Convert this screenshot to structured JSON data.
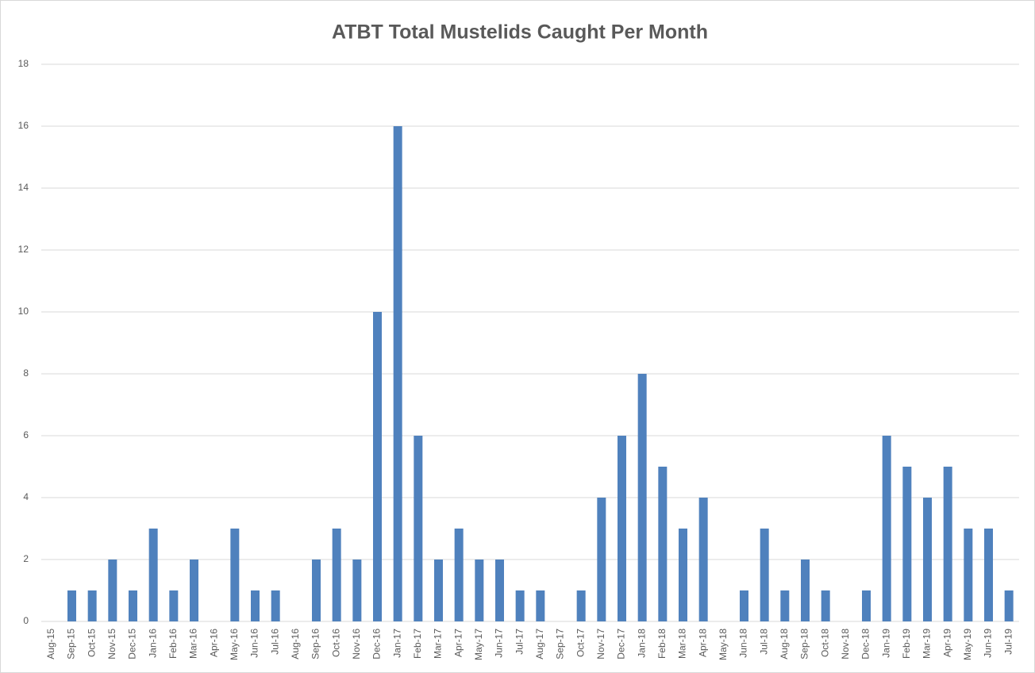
{
  "chart_data": {
    "type": "bar",
    "title": "ATBT Total Mustelids Caught Per Month",
    "categories": [
      "Aug-15",
      "Sep-15",
      "Oct-15",
      "Nov-15",
      "Dec-15",
      "Jan-16",
      "Feb-16",
      "Mar-16",
      "Apr-16",
      "May-16",
      "Jun-16",
      "Jul-16",
      "Aug-16",
      "Sep-16",
      "Oct-16",
      "Nov-16",
      "Dec-16",
      "Jan-17",
      "Feb-17",
      "Mar-17",
      "Apr-17",
      "May-17",
      "Jun-17",
      "Jul-17",
      "Aug-17",
      "Sep-17",
      "Oct-17",
      "Nov-17",
      "Dec-17",
      "Jan-18",
      "Feb-18",
      "Mar-18",
      "Apr-18",
      "May-18",
      "Jun-18",
      "Jul-18",
      "Aug-18",
      "Sep-18",
      "Oct-18",
      "Nov-18",
      "Dec-18",
      "Jan-19",
      "Feb-19",
      "Mar-19",
      "Apr-19",
      "May-19",
      "Jun-19",
      "Jul-19"
    ],
    "values": [
      0,
      1,
      1,
      2,
      1,
      3,
      1,
      2,
      0,
      3,
      1,
      1,
      0,
      2,
      3,
      2,
      10,
      16,
      6,
      2,
      3,
      2,
      2,
      1,
      1,
      0,
      1,
      4,
      6,
      8,
      5,
      3,
      4,
      0,
      1,
      3,
      1,
      2,
      1,
      0,
      1,
      6,
      5,
      4,
      5,
      3,
      3,
      1
    ],
    "color": "#4f81bd",
    "ylim": [
      0,
      18
    ],
    "yticks": [
      0,
      2,
      4,
      6,
      8,
      10,
      12,
      14,
      16,
      18
    ],
    "grid": true
  }
}
